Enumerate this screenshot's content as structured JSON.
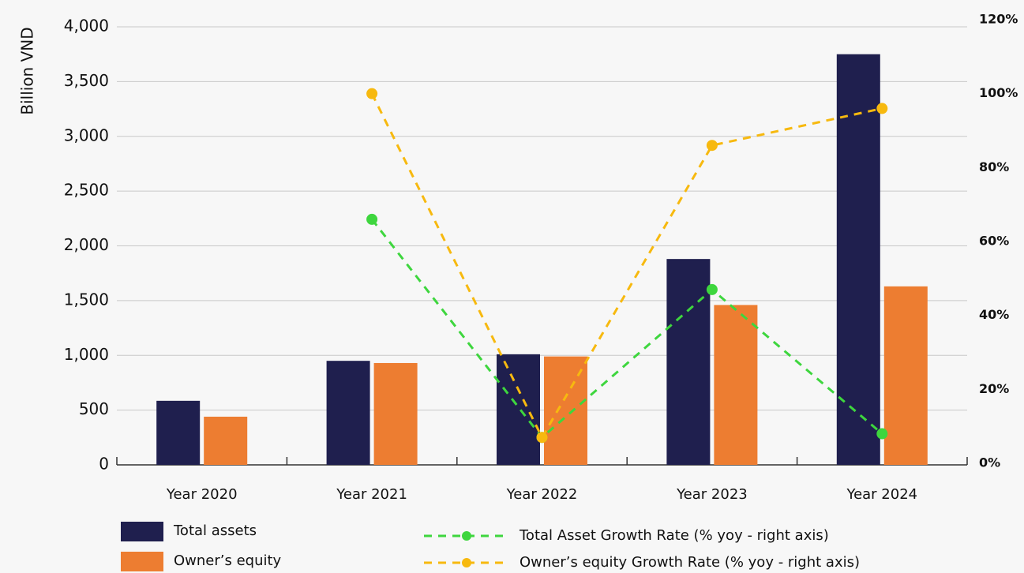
{
  "chart_data": {
    "type": "bar",
    "categories": [
      "Year 2020",
      "Year 2021",
      "Year 2022",
      "Year 2023",
      "Year 2024"
    ],
    "ylabel": "Billion VND",
    "ylim": [
      0,
      4000
    ],
    "yticks": [
      0,
      500,
      {
        "value": 1000,
        "label": "1,000"
      },
      {
        "value": 1500,
        "label": "1,500"
      },
      {
        "value": 2000,
        "label": "2,000"
      },
      {
        "value": 2500,
        "label": "2,500"
      },
      {
        "value": 3000,
        "label": "3,000"
      },
      {
        "value": 3500,
        "label": "3,500"
      },
      {
        "value": 4000,
        "label": "4,000"
      }
    ],
    "y2lim": [
      0,
      120
    ],
    "y2ticks": [
      {
        "value": 0,
        "label": "0%"
      },
      {
        "value": 20,
        "label": "20%"
      },
      {
        "value": 40,
        "label": "40%"
      },
      {
        "value": 60,
        "label": "60%"
      },
      {
        "value": 80,
        "label": "80%"
      },
      {
        "value": 100,
        "label": "100%"
      },
      {
        "value": 120,
        "label": "120%"
      }
    ],
    "grid": true,
    "series": [
      {
        "name": "Total assets",
        "type": "bar",
        "color": "#1f1f4e",
        "values": [
          585,
          950,
          1010,
          1880,
          3750
        ]
      },
      {
        "name": "Owner’s equity",
        "type": "bar",
        "color": "#ed7d31",
        "values": [
          440,
          930,
          990,
          1460,
          1630
        ]
      },
      {
        "name": "Total Asset Growth Rate (% yoy - right axis)",
        "type": "line",
        "axis": "y2",
        "color": "#3ed63e",
        "values": [
          null,
          66,
          7,
          47,
          8
        ]
      },
      {
        "name": "Owner’s equity Growth Rate (% yoy - right axis)",
        "type": "line",
        "axis": "y2",
        "color": "#f7b90f",
        "values": [
          null,
          100,
          7,
          86,
          96
        ]
      }
    ]
  }
}
